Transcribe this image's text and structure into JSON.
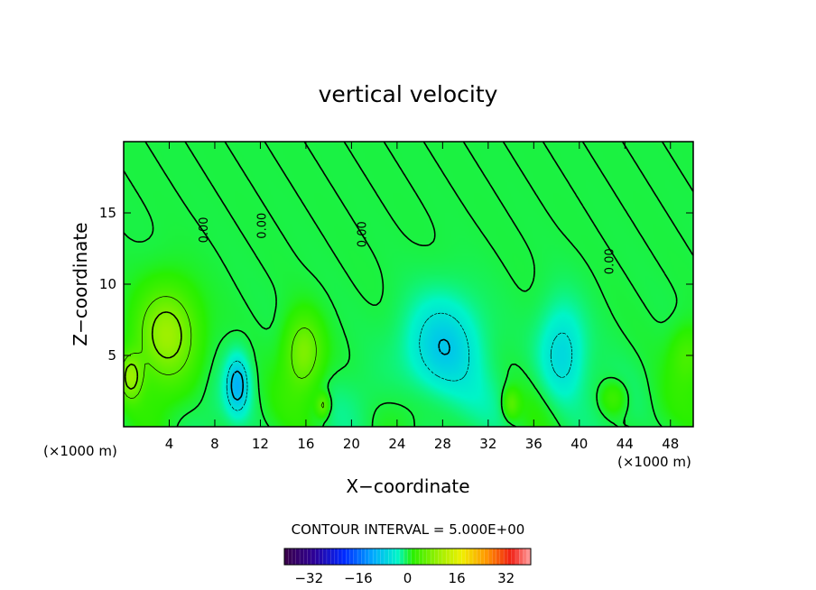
{
  "chart_data": {
    "type": "heatmap",
    "title": "vertical velocity",
    "xlabel": "X−coordinate",
    "ylabel": "Z−coordinate",
    "x_unit_left": "(×1000 m)",
    "x_unit_right": "(×1000 m)",
    "xlim": [
      0,
      50
    ],
    "ylim": [
      0,
      20
    ],
    "x_ticks": [
      4,
      8,
      12,
      16,
      20,
      24,
      28,
      32,
      36,
      40,
      44,
      48
    ],
    "x_tick_labels": [
      "4",
      "8",
      "12",
      "16",
      "20",
      "24",
      "28",
      "32",
      "36",
      "40",
      "44",
      "48"
    ],
    "y_ticks": [
      5,
      10,
      15
    ],
    "y_tick_labels": [
      "5",
      "10",
      "15"
    ],
    "contour_interval_text": "CONTOUR INTERVAL = 5.000E+00",
    "contour_labels": [
      {
        "text": "0.00",
        "x": 7.1,
        "z": 13.8
      },
      {
        "text": "0.00",
        "x": 12.2,
        "z": 14.1
      },
      {
        "text": "0.00",
        "x": 21.0,
        "z": 13.5
      },
      {
        "text": "0.00",
        "x": 42.7,
        "z": 11.6
      }
    ],
    "colorbar": {
      "min": -40,
      "max": 40,
      "tick_values": [
        -32,
        -16,
        0,
        16,
        32
      ],
      "tick_labels": [
        "−32",
        "−16",
        "0",
        "16",
        "32"
      ]
    },
    "features": [
      {
        "x": 3.8,
        "z": 6.5,
        "sx": 2.6,
        "sz": 3.2,
        "amp": 10
      },
      {
        "x": 0.6,
        "z": 3.5,
        "sx": 1.0,
        "sz": 1.6,
        "amp": 9
      },
      {
        "x": 10.0,
        "z": 3.0,
        "sx": 1.0,
        "sz": 2.0,
        "amp": -9
      },
      {
        "x": 15.8,
        "z": 5.2,
        "sx": 1.6,
        "sz": 2.5,
        "amp": 8
      },
      {
        "x": 17.5,
        "z": 1.5,
        "sx": 0.6,
        "sz": 0.8,
        "amp": 6
      },
      {
        "x": 28.0,
        "z": 5.5,
        "sx": 3.2,
        "sz": 3.5,
        "amp": -8
      },
      {
        "x": 38.5,
        "z": 5.0,
        "sx": 2.0,
        "sz": 3.5,
        "amp": -6.5
      },
      {
        "x": 34.0,
        "z": 1.6,
        "sx": 0.7,
        "sz": 1.0,
        "amp": 5
      },
      {
        "x": 43.0,
        "z": 2.0,
        "sx": 1.2,
        "sz": 1.2,
        "amp": 4
      },
      {
        "x": 49.5,
        "z": 5.0,
        "sx": 1.5,
        "sz": 2.0,
        "amp": 4
      }
    ]
  }
}
